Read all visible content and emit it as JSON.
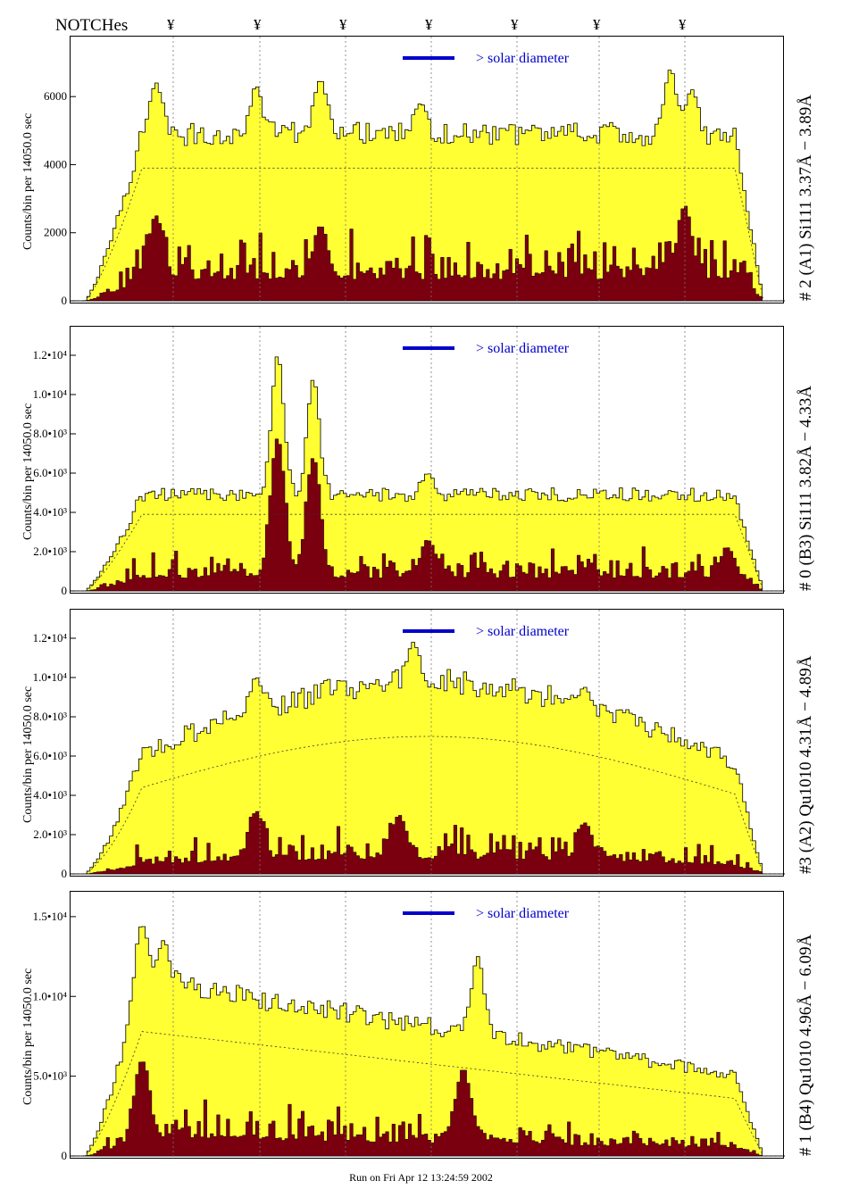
{
  "header": {
    "notches_label": "NOTCHes",
    "notch_symbol": "¥",
    "notch_count": 7
  },
  "footer": {
    "run_text": "Run on Fri Apr 12 13:24:59 2002"
  },
  "colors": {
    "fill_total": "#ffff33",
    "fill_dark": "#7a0010",
    "solar_bar": "#0000cc",
    "notch_line": "#777777"
  },
  "chart_data": [
    {
      "type": "area",
      "panel_label": "# 2 (A1) Si111  3.37Å − 3.89Å",
      "ylabel": "Counts/bin per  14050.0 sec",
      "ylim": [
        0,
        7500
      ],
      "yticks": [
        {
          "v": 0,
          "t": "0"
        },
        {
          "v": 2000,
          "t": "2000"
        },
        {
          "v": 4000,
          "t": "4000"
        },
        {
          "v": 6000,
          "t": "6000"
        }
      ],
      "legend": "> solar diameter",
      "profile": "flat",
      "total_level": 4900,
      "dark_level": 1150,
      "model_level": 3900,
      "spikes_total": [
        [
          0.12,
          6400
        ],
        [
          0.26,
          6300
        ],
        [
          0.35,
          6500
        ],
        [
          0.49,
          5800
        ],
        [
          0.84,
          6800
        ],
        [
          0.87,
          6200
        ]
      ],
      "spikes_dark": [
        [
          0.12,
          2500
        ],
        [
          0.35,
          2200
        ],
        [
          0.86,
          2800
        ]
      ]
    },
    {
      "type": "area",
      "panel_label": "# 0 (B3) Si111  3.82Å − 4.33Å",
      "ylabel": "Counts/bin per  14050.0 sec",
      "ylim": [
        0,
        13000
      ],
      "yticks": [
        {
          "v": 0,
          "t": "0"
        },
        {
          "v": 2000,
          "t": "2.0•10³"
        },
        {
          "v": 4000,
          "t": "4.0•10³"
        },
        {
          "v": 6000,
          "t": "6.0•10³"
        },
        {
          "v": 8000,
          "t": "8.0•10³"
        },
        {
          "v": 10000,
          "t": "1.0•10⁴"
        },
        {
          "v": 12000,
          "t": "1.2•10⁴"
        }
      ],
      "legend": "> solar diameter",
      "profile": "flat",
      "total_level": 4900,
      "dark_level": 1200,
      "model_level": 3900,
      "spikes_total": [
        [
          0.29,
          12000
        ],
        [
          0.34,
          10800
        ],
        [
          0.5,
          6000
        ]
      ],
      "spikes_dark": [
        [
          0.29,
          7800
        ],
        [
          0.34,
          6800
        ],
        [
          0.5,
          2600
        ],
        [
          0.92,
          2200
        ]
      ]
    },
    {
      "type": "area",
      "panel_label": "#3 (A2) Qu1010  4.31Å − 4.89Å",
      "ylabel": "Counts/bin per  14050.0 sec",
      "ylim": [
        0,
        13000
      ],
      "yticks": [
        {
          "v": 0,
          "t": "0"
        },
        {
          "v": 2000,
          "t": "2.0•10³"
        },
        {
          "v": 4000,
          "t": "4.0•10³"
        },
        {
          "v": 6000,
          "t": "6.0•10³"
        },
        {
          "v": 8000,
          "t": "8.0•10³"
        },
        {
          "v": 10000,
          "t": "1.0•10⁴"
        },
        {
          "v": 12000,
          "t": "1.2•10⁴"
        }
      ],
      "legend": "> solar diameter",
      "profile": "dome",
      "total_level": 9800,
      "dark_level": 1400,
      "model_level": 7000,
      "spikes_total": [
        [
          0.48,
          11800
        ],
        [
          0.26,
          10000
        ],
        [
          0.72,
          9500
        ]
      ],
      "spikes_dark": [
        [
          0.26,
          3200
        ],
        [
          0.46,
          3000
        ],
        [
          0.72,
          2600
        ]
      ]
    },
    {
      "type": "area",
      "panel_label": "# 1 (B4) Qu1010 4.96Å − 6.09Å",
      "ylabel": "Counts/bin per  14050.0 sec",
      "ylim": [
        0,
        16000
      ],
      "yticks": [
        {
          "v": 0,
          "t": "0"
        },
        {
          "v": 5000,
          "t": "5.0•10³"
        },
        {
          "v": 10000,
          "t": "1.0•10⁴"
        },
        {
          "v": 15000,
          "t": "1.5•10⁴"
        }
      ],
      "legend": "> solar diameter",
      "profile": "decline",
      "total_level": 11000,
      "dark_level": 2000,
      "model_level": 7800,
      "spikes_total": [
        [
          0.1,
          14500
        ],
        [
          0.13,
          13500
        ],
        [
          0.57,
          12500
        ]
      ],
      "spikes_dark": [
        [
          0.1,
          6000
        ],
        [
          0.55,
          5500
        ]
      ]
    }
  ]
}
